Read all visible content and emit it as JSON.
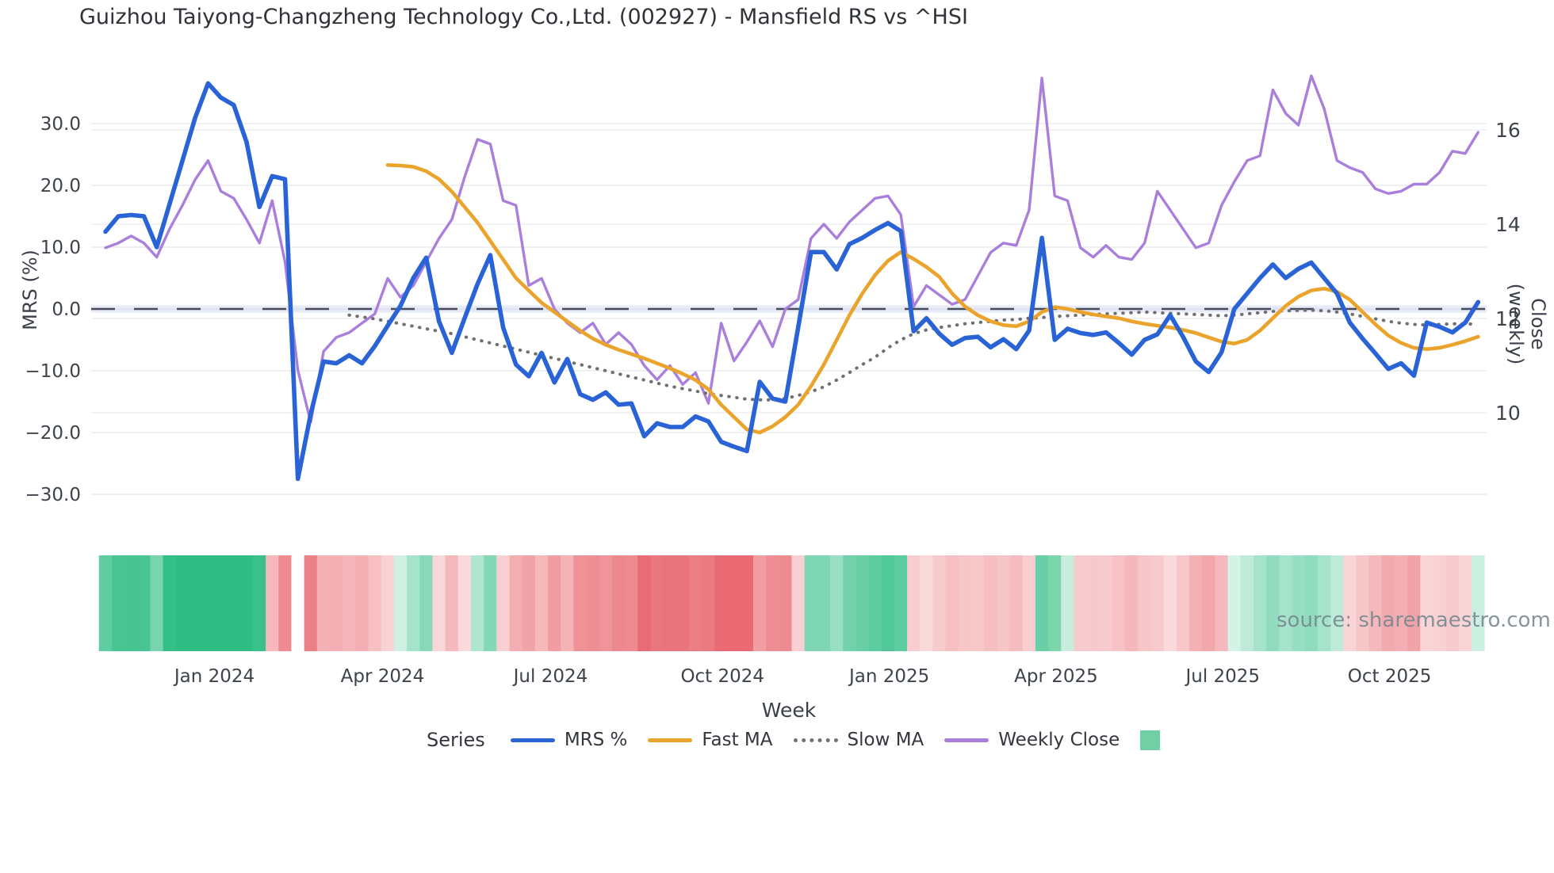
{
  "title": "Guizhou Taiyong-Changzheng Technology Co.,Ltd. (002927) - Mansfield RS vs ^HSI",
  "source": "source: sharemaestro.com",
  "axes": {
    "left": {
      "label": "MRS (%)",
      "ticks": [
        "30.0",
        "20.0",
        "10.0",
        "0.0",
        "−10.0",
        "−20.0",
        "−30.0"
      ],
      "tick_values": [
        30,
        20,
        10,
        0,
        -10,
        -20,
        -30
      ]
    },
    "right": {
      "label": "Close (weekly)",
      "ticks": [
        "16",
        "14",
        "12",
        "10"
      ],
      "tick_values": [
        16,
        14,
        12,
        10
      ]
    },
    "x": {
      "label": "Week",
      "ticks": [
        "Jan 2024",
        "Apr 2024",
        "Jul 2024",
        "Oct 2024",
        "Jan 2025",
        "Apr 2025",
        "Jul 2025",
        "Oct 2025"
      ],
      "tick_week_index": [
        8.5,
        21.6,
        34.7,
        48.1,
        61.1,
        74.1,
        87.1,
        100.1
      ]
    }
  },
  "legend": {
    "title": "Series",
    "items": [
      {
        "label": "MRS %",
        "swatch": "line",
        "color": "#2a63d5"
      },
      {
        "label": "Fast MA",
        "swatch": "line",
        "color": "#eaa42c"
      },
      {
        "label": "Slow MA",
        "swatch": "dot",
        "color": "#707070"
      },
      {
        "label": "Weekly Close",
        "swatch": "line",
        "color": "#a97fdb"
      },
      {
        "label": "",
        "swatch": "square",
        "color": "#70cfa3"
      }
    ]
  },
  "colors": {
    "mrs_line": "#2a63d5",
    "fast_ma": "#eaa42c",
    "slow_ma": "#707070",
    "weekly_close": "#a97fdb",
    "zero_line": "#454b58",
    "zero_underlay": "#ccd4f0",
    "gridline": "#e9ebf1",
    "heat_positive": "#2fbd85",
    "heat_negative": "#e96a72",
    "tick_text": "#3d434b"
  },
  "chart_data": {
    "type": "line",
    "title": "Guizhou Taiyong-Changzheng Technology Co.,Ltd. (002927) - Mansfield RS vs ^HSI",
    "xlabel": "Week",
    "ylabel_left": "MRS (%)",
    "ylabel_right": "Close (weekly)",
    "x_unit": "weekly index, ~Nov 2023 to ~Nov 2025",
    "n_points": 108,
    "ylim_left": [
      -32,
      38
    ],
    "ylim_right": [
      9.4,
      17.6
    ],
    "grid": true,
    "legend_position": "bottom",
    "series": [
      {
        "name": "MRS %",
        "axis": "left",
        "style": "solid",
        "color": "#2a63d5",
        "values": [
          12.5,
          15.0,
          15.2,
          15.0,
          10.0,
          17.0,
          24.0,
          31.0,
          36.5,
          34.2,
          33.0,
          27.0,
          16.5,
          21.5,
          21.0,
          -27.5,
          -17.0,
          -8.5,
          -8.8,
          -7.5,
          -8.8,
          -6.0,
          -2.7,
          0.5,
          5.0,
          8.3,
          -2.0,
          -7.1,
          -1.5,
          4.0,
          8.7,
          -3.0,
          -9.0,
          -10.9,
          -7.1,
          -11.9,
          -8.1,
          -13.8,
          -14.7,
          -13.5,
          -15.5,
          -15.3,
          -20.6,
          -18.5,
          -19.1,
          -19.1,
          -17.4,
          -18.2,
          -21.5,
          -22.3,
          -23.0,
          -11.8,
          -14.5,
          -15.0,
          -3.0,
          9.2,
          9.2,
          6.4,
          10.5,
          11.5,
          12.8,
          13.9,
          12.6,
          -3.6,
          -1.5,
          -4.0,
          -5.8,
          -4.7,
          -4.5,
          -6.2,
          -4.9,
          -6.5,
          -3.5,
          11.5,
          -5.0,
          -3.2,
          -3.9,
          -4.2,
          -3.8,
          -5.5,
          -7.4,
          -5.0,
          -4.1,
          -1.0,
          -4.5,
          -8.5,
          -10.2,
          -7.0,
          0.0,
          2.5,
          5.0,
          7.2,
          5.0,
          6.5,
          7.5,
          5.0,
          2.5,
          -2.2,
          -4.8,
          -7.2,
          -9.7,
          -8.8,
          -10.8,
          -2.2,
          -2.9,
          -3.8,
          -2.2,
          1.1
        ]
      },
      {
        "name": "Fast MA",
        "axis": "left",
        "style": "solid",
        "color": "#eaa42c",
        "values": [
          null,
          null,
          null,
          null,
          null,
          null,
          null,
          null,
          null,
          null,
          null,
          null,
          null,
          null,
          null,
          null,
          null,
          null,
          null,
          null,
          null,
          null,
          23.3,
          23.2,
          23.0,
          22.3,
          21.0,
          19.0,
          16.5,
          14.0,
          11.0,
          8.0,
          5.0,
          3.0,
          1.0,
          -0.5,
          -2.0,
          -3.5,
          -4.8,
          -5.8,
          -6.6,
          -7.3,
          -8.0,
          -8.8,
          -9.6,
          -10.5,
          -11.5,
          -13.0,
          -15.5,
          -17.5,
          -19.5,
          -20.0,
          -19.0,
          -17.5,
          -15.5,
          -12.5,
          -9.0,
          -5.0,
          -1.0,
          2.5,
          5.5,
          7.8,
          9.2,
          8.1,
          6.8,
          5.2,
          2.5,
          0.4,
          -1.0,
          -2.0,
          -2.6,
          -2.8,
          -2.0,
          -0.5,
          0.3,
          0.0,
          -0.5,
          -0.9,
          -1.2,
          -1.5,
          -2.0,
          -2.4,
          -2.7,
          -3.0,
          -3.4,
          -3.9,
          -4.6,
          -5.3,
          -5.6,
          -5.0,
          -3.5,
          -1.5,
          0.5,
          2.0,
          3.0,
          3.3,
          2.8,
          1.5,
          -0.5,
          -2.5,
          -4.3,
          -5.5,
          -6.3,
          -6.5,
          -6.3,
          -5.8,
          -5.2,
          -4.5
        ]
      },
      {
        "name": "Slow MA",
        "axis": "left",
        "style": "dotted",
        "color": "#707070",
        "values": [
          null,
          null,
          null,
          null,
          null,
          null,
          null,
          null,
          null,
          null,
          null,
          null,
          null,
          null,
          null,
          null,
          null,
          null,
          null,
          -1.0,
          -1.3,
          -1.6,
          -2.0,
          -2.4,
          -2.8,
          -3.2,
          -3.6,
          -4.0,
          -4.5,
          -5.0,
          -5.5,
          -6.0,
          -6.5,
          -7.0,
          -7.5,
          -8.0,
          -8.5,
          -9.0,
          -9.5,
          -10.0,
          -10.5,
          -11.0,
          -11.5,
          -12.0,
          -12.5,
          -12.9,
          -13.3,
          -13.7,
          -14.0,
          -14.3,
          -14.6,
          -14.7,
          -14.7,
          -14.5,
          -14.0,
          -13.4,
          -12.6,
          -11.5,
          -10.3,
          -9.0,
          -7.8,
          -6.3,
          -5.0,
          -4.0,
          -3.4,
          -3.0,
          -2.7,
          -2.4,
          -2.2,
          -2.0,
          -1.8,
          -1.7,
          -1.5,
          -1.4,
          -1.2,
          -1.1,
          -1.0,
          -0.9,
          -0.8,
          -0.7,
          -0.6,
          -0.5,
          -0.6,
          -0.7,
          -0.8,
          -0.9,
          -1.0,
          -1.1,
          -1.0,
          -0.8,
          -0.6,
          -0.4,
          -0.3,
          -0.25,
          -0.2,
          -0.3,
          -0.5,
          -0.8,
          -1.2,
          -1.6,
          -2.0,
          -2.3,
          -2.5,
          -2.6,
          -2.5,
          -2.4,
          -2.4,
          -2.5
        ]
      },
      {
        "name": "Weekly Close",
        "axis": "right",
        "style": "solid",
        "color": "#a97fdb",
        "values": [
          13.5,
          13.6,
          13.75,
          13.6,
          13.3,
          13.9,
          14.4,
          14.95,
          15.35,
          14.7,
          14.55,
          14.1,
          13.6,
          14.5,
          13.2,
          10.9,
          9.8,
          11.3,
          11.6,
          11.7,
          11.9,
          12.1,
          12.85,
          12.45,
          12.7,
          13.2,
          13.7,
          14.1,
          15.0,
          15.8,
          15.7,
          14.5,
          14.4,
          12.7,
          12.85,
          12.2,
          11.9,
          11.7,
          11.9,
          11.45,
          11.7,
          11.45,
          11.0,
          10.7,
          11.0,
          10.6,
          10.85,
          10.2,
          11.9,
          11.1,
          11.5,
          11.95,
          11.4,
          12.2,
          12.4,
          13.7,
          14.0,
          13.7,
          14.05,
          14.3,
          14.55,
          14.6,
          14.2,
          12.25,
          12.7,
          12.5,
          12.3,
          12.4,
          12.9,
          13.4,
          13.6,
          13.55,
          14.3,
          17.1,
          14.6,
          14.5,
          13.5,
          13.3,
          13.55,
          13.3,
          13.25,
          13.6,
          14.7,
          14.3,
          13.9,
          13.5,
          13.6,
          14.4,
          14.9,
          15.35,
          15.45,
          16.85,
          16.35,
          16.1,
          17.15,
          16.45,
          15.35,
          15.2,
          15.1,
          14.75,
          14.65,
          14.7,
          14.85,
          14.85,
          15.1,
          15.55,
          15.5,
          15.95
        ]
      }
    ],
    "zero_reference_line": {
      "axis": "left",
      "value": 0,
      "style": "dashed"
    },
    "heatmap_strip": {
      "description": "weekly band strip below plot, color-mapped from MRS % (green positive, red negative)",
      "colormap": {
        "positive": "#2fbd85",
        "negative": "#e96a72"
      },
      "overrides": {
        "13": "#f5b8bc",
        "14": "#ee8a90",
        "15": "#ffffff",
        "74": "#7dd5ab",
        "75": "#c9eddd"
      },
      "missing_weeks": [
        15
      ]
    }
  }
}
